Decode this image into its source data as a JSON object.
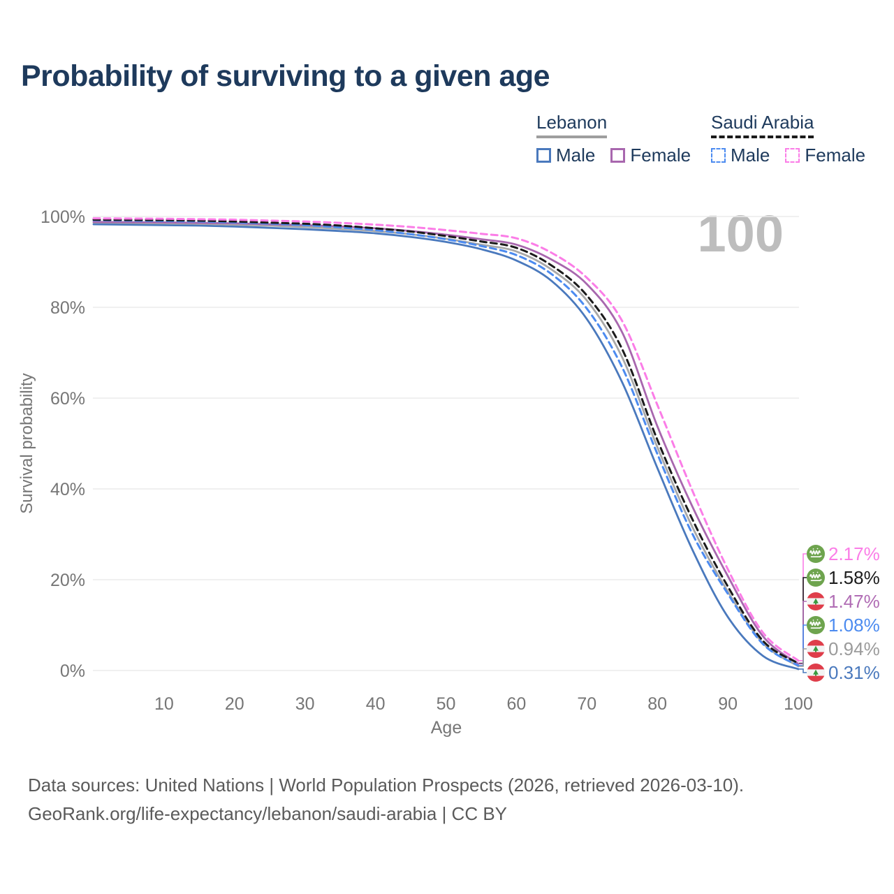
{
  "title": "Probability of surviving to a given age",
  "watermark": "100",
  "legend": {
    "groups": [
      {
        "country": "Lebanon",
        "series_key": "lebanon-all",
        "underline": {
          "color": "#9e9e9e",
          "dashed": false
        },
        "items": [
          {
            "label": "Male",
            "series_key": "lebanon-male"
          },
          {
            "label": "Female",
            "series_key": "lebanon-female"
          }
        ]
      },
      {
        "country": "Saudi Arabia",
        "series_key": "saudi-all",
        "underline": {
          "color": "#1b1b1b",
          "dashed": true
        },
        "items": [
          {
            "label": "Male",
            "series_key": "saudi-male"
          },
          {
            "label": "Female",
            "series_key": "saudi-female"
          }
        ]
      }
    ]
  },
  "chart_data": {
    "type": "line",
    "xlabel": "Age",
    "ylabel": "Survival probability",
    "xlim": [
      0,
      100
    ],
    "ylim": [
      0,
      100
    ],
    "grid": true,
    "x_ticks": [
      {
        "value": 10,
        "label": "10"
      },
      {
        "value": 20,
        "label": "20"
      },
      {
        "value": 30,
        "label": "30"
      },
      {
        "value": 40,
        "label": "40"
      },
      {
        "value": 50,
        "label": "50"
      },
      {
        "value": 60,
        "label": "60"
      },
      {
        "value": 70,
        "label": "70"
      },
      {
        "value": 80,
        "label": "80"
      },
      {
        "value": 90,
        "label": "90"
      },
      {
        "value": 100,
        "label": "100"
      }
    ],
    "y_ticks": [
      {
        "value": 0,
        "label": "0%"
      },
      {
        "value": 20,
        "label": "20%"
      },
      {
        "value": 40,
        "label": "40%"
      },
      {
        "value": 60,
        "label": "60%"
      },
      {
        "value": 80,
        "label": "80%"
      },
      {
        "value": 100,
        "label": "100%"
      }
    ],
    "x": [
      0,
      5,
      10,
      15,
      20,
      25,
      30,
      35,
      40,
      45,
      50,
      55,
      60,
      65,
      70,
      75,
      80,
      85,
      90,
      95,
      100
    ],
    "series": [
      {
        "key": "lebanon-male",
        "name": "Lebanon Male",
        "color": "#4a79bd",
        "dashed": false,
        "end_label": {
          "text": "0.31%",
          "color": "#4a79bd",
          "flag": "lebanon"
        },
        "values": [
          98.3,
          98.2,
          98.1,
          98.0,
          97.8,
          97.5,
          97.2,
          96.8,
          96.3,
          95.5,
          94.4,
          92.8,
          90.3,
          85.8,
          77.4,
          63.5,
          44.6,
          26.5,
          11.8,
          3.2,
          0.31
        ]
      },
      {
        "key": "lebanon-all",
        "name": "Lebanon Both sexes",
        "color": "#a9a9a9",
        "dashed": false,
        "end_label": {
          "text": "0.94%",
          "color": "#9b9b9b",
          "flag": "lebanon"
        },
        "values": [
          98.7,
          98.6,
          98.5,
          98.4,
          98.2,
          98.0,
          97.7,
          97.3,
          96.8,
          96.1,
          95.1,
          93.8,
          92.3,
          88.3,
          81.5,
          69.0,
          49.2,
          31.5,
          17.4,
          6.0,
          0.94
        ]
      },
      {
        "key": "lebanon-female",
        "name": "Lebanon Female",
        "color": "#a867ae",
        "dashed": false,
        "end_label": {
          "text": "1.47%",
          "color": "#b06cb4",
          "flag": "lebanon"
        },
        "values": [
          98.8,
          98.75,
          98.7,
          98.6,
          98.5,
          98.3,
          98.1,
          97.8,
          97.4,
          96.8,
          96.0,
          95.0,
          93.8,
          90.5,
          85.1,
          74.5,
          53.8,
          36.0,
          20.8,
          7.5,
          1.47
        ]
      },
      {
        "key": "saudi-male",
        "name": "Saudi Arabia Male",
        "color": "#4c8bf0",
        "dashed": true,
        "end_label": {
          "text": "1.08%",
          "color": "#4c8bf0",
          "flag": "saudi-arabia"
        },
        "values": [
          99.2,
          99.1,
          99.0,
          98.9,
          98.7,
          98.45,
          98.1,
          97.6,
          97.0,
          96.1,
          95.0,
          93.5,
          91.5,
          87.3,
          79.7,
          66.8,
          47.7,
          30.0,
          16.9,
          5.8,
          1.08
        ]
      },
      {
        "key": "saudi-all",
        "name": "Saudi Arabia Both sexes",
        "color": "#1b1b1b",
        "dashed": true,
        "end_label": {
          "text": "1.58%",
          "color": "#1b1b1b",
          "flag": "saudi-arabia"
        },
        "values": [
          99.3,
          99.25,
          99.2,
          99.1,
          98.9,
          98.65,
          98.4,
          98.0,
          97.4,
          96.7,
          95.7,
          94.5,
          93.1,
          89.2,
          82.6,
          70.8,
          50.8,
          33.2,
          18.5,
          6.5,
          1.58
        ]
      },
      {
        "key": "saudi-female",
        "name": "Saudi Arabia Female",
        "color": "#fb7de7",
        "dashed": true,
        "end_label": {
          "text": "2.17%",
          "color": "#fb7de7",
          "flag": "saudi-arabia"
        },
        "values": [
          99.6,
          99.55,
          99.5,
          99.4,
          99.3,
          99.1,
          98.9,
          98.6,
          98.2,
          97.7,
          97.0,
          96.2,
          95.2,
          92.0,
          86.5,
          77.0,
          58.5,
          39.5,
          22.3,
          8.3,
          2.17
        ]
      }
    ]
  },
  "footer": {
    "line1": "Data sources: United Nations | World Population Prospects (2026, retrieved 2026-03-10).",
    "line2": "GeoRank.org/life-expectancy/lebanon/saudi-arabia | CC BY"
  }
}
